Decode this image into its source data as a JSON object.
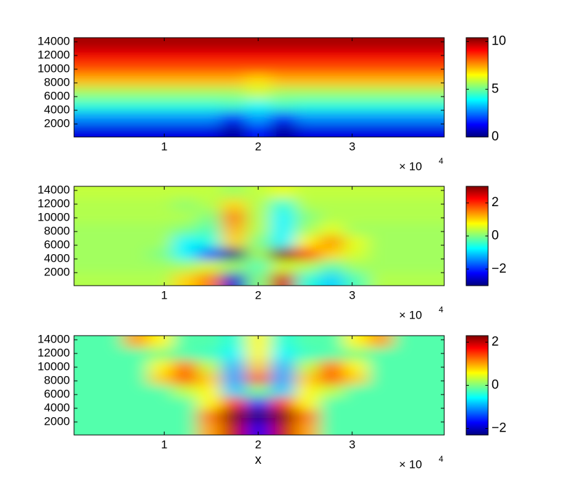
{
  "chart_data": [
    {
      "type": "heatmap",
      "x": [
        1800,
        4400,
        7000,
        9600,
        12200,
        14800,
        17400,
        20000,
        22600,
        25200,
        27800,
        30400,
        33000,
        35600,
        38200
      ],
      "y": [
        13700,
        11900,
        10100,
        8300,
        6500,
        4700,
        2900,
        1100
      ],
      "z": [
        [
          10,
          10,
          10,
          10,
          10,
          10,
          10,
          10,
          10,
          10,
          10,
          10,
          10,
          10,
          10
        ],
        [
          9.2,
          9.2,
          9.2,
          9.2,
          9.2,
          9.2,
          9.2,
          9.2,
          9.2,
          9.2,
          9.2,
          9.2,
          9.2,
          9.2,
          9.2
        ],
        [
          8.3,
          8.3,
          8.3,
          8.3,
          8.3,
          8.3,
          8.3,
          8.3,
          8.3,
          8.3,
          8.3,
          8.3,
          8.3,
          8.3,
          8.3
        ],
        [
          7.2,
          7.2,
          7.2,
          7.2,
          7.2,
          7.2,
          7.2,
          6.8,
          7.2,
          7.2,
          7.2,
          7.2,
          7.2,
          7.2,
          7.2
        ],
        [
          5.5,
          5.5,
          5.5,
          5.5,
          5.5,
          5.5,
          5.5,
          6.0,
          5.5,
          5.5,
          5.5,
          5.5,
          5.5,
          5.5,
          5.5
        ],
        [
          4.3,
          4.3,
          4.3,
          4.3,
          4.3,
          4.3,
          4.5,
          4.0,
          4.5,
          4.3,
          4.3,
          4.3,
          4.3,
          4.3,
          4.3
        ],
        [
          2.8,
          2.8,
          2.8,
          2.8,
          2.8,
          2.8,
          1.5,
          3.0,
          1.5,
          2.8,
          2.8,
          2.8,
          2.8,
          2.8,
          2.8
        ],
        [
          1.0,
          1.0,
          1.0,
          1.0,
          1.0,
          1.0,
          0.3,
          1.5,
          0.3,
          1.0,
          1.0,
          1.0,
          1.0,
          1.0,
          1.0
        ]
      ],
      "xlim": [
        400,
        39800
      ],
      "ylim": [
        100,
        14600
      ],
      "xticks": [
        {
          "value": 10000,
          "label": "1"
        },
        {
          "value": 20000,
          "label": "2"
        },
        {
          "value": 30000,
          "label": "3"
        }
      ],
      "yticks": [
        2000,
        4000,
        6000,
        8000,
        10000,
        12000,
        14000
      ],
      "x_multiplier": "× 10",
      "x_multiplier_exponent": "4",
      "colorbar": {
        "clim": [
          0,
          10.4
        ],
        "ticks": [
          0,
          5,
          10
        ]
      }
    },
    {
      "type": "heatmap",
      "x": [
        1800,
        4400,
        7000,
        9600,
        12200,
        14800,
        17400,
        20000,
        22600,
        25200,
        27800,
        30400,
        33000,
        35600,
        38200
      ],
      "y": [
        13700,
        11900,
        10100,
        8300,
        6500,
        4700,
        2900,
        1100
      ],
      "z": [
        [
          0.4,
          0.4,
          0.4,
          0.4,
          0.4,
          0.4,
          0.2,
          0.4,
          0.6,
          0.4,
          0.4,
          0.4,
          0.4,
          0.4,
          0.4
        ],
        [
          0.3,
          0.3,
          0.3,
          0.3,
          0.1,
          0.3,
          1.0,
          0.3,
          -0.5,
          0.3,
          0.3,
          0.3,
          0.3,
          0.3,
          0.3
        ],
        [
          0.3,
          0.3,
          0.3,
          0.3,
          0.3,
          0.0,
          1.5,
          0.3,
          -0.8,
          0.0,
          0.3,
          0.3,
          0.3,
          0.3,
          0.3
        ],
        [
          0.2,
          0.2,
          0.2,
          0.2,
          0.0,
          -0.3,
          1.2,
          0.3,
          -0.8,
          0.2,
          0.6,
          0.2,
          0.2,
          0.2,
          0.2
        ],
        [
          0.2,
          0.2,
          0.2,
          0.2,
          -0.8,
          -0.6,
          1.0,
          0.0,
          -0.8,
          0.8,
          1.4,
          0.6,
          0.2,
          0.2,
          0.2
        ],
        [
          0.2,
          0.2,
          0.2,
          0.0,
          -0.8,
          -1.8,
          -3.0,
          0.2,
          3.0,
          2.0,
          1.0,
          0.5,
          0.2,
          0.2,
          0.2
        ],
        [
          0.2,
          0.2,
          0.2,
          0.2,
          0.2,
          0.5,
          0.2,
          -0.3,
          0.5,
          0.3,
          -0.2,
          0.2,
          0.2,
          0.2,
          0.2
        ],
        [
          0.3,
          0.3,
          0.3,
          0.3,
          1.0,
          1.5,
          -2.5,
          0.0,
          2.5,
          -0.5,
          -1.0,
          -0.3,
          0.3,
          0.3,
          0.3
        ]
      ],
      "xlim": [
        400,
        39800
      ],
      "ylim": [
        100,
        14600
      ],
      "xticks": [
        {
          "value": 10000,
          "label": "1"
        },
        {
          "value": 20000,
          "label": "2"
        },
        {
          "value": 30000,
          "label": "3"
        }
      ],
      "yticks": [
        2000,
        4000,
        6000,
        8000,
        10000,
        12000,
        14000
      ],
      "x_multiplier": "× 10",
      "x_multiplier_exponent": "4",
      "colorbar": {
        "clim": [
          -3,
          3
        ],
        "ticks": [
          {
            "value": -2,
            "label": "−2"
          },
          0,
          2
        ]
      }
    },
    {
      "type": "heatmap",
      "x": [
        1800,
        4400,
        7000,
        9600,
        12200,
        14800,
        17400,
        20000,
        22600,
        25200,
        27800,
        30400,
        33000,
        35600,
        38200
      ],
      "y": [
        13700,
        11900,
        10100,
        8300,
        6500,
        4700,
        2900,
        1100
      ],
      "z": [
        [
          -0.2,
          -0.2,
          1.0,
          0.6,
          -0.2,
          -0.2,
          -0.4,
          0.6,
          -0.4,
          -0.2,
          -0.2,
          0.6,
          1.0,
          -0.2,
          -0.2
        ],
        [
          -0.2,
          -0.2,
          -0.2,
          0.0,
          -0.2,
          -0.3,
          -0.6,
          0.6,
          -0.6,
          -0.3,
          -0.2,
          0.0,
          -0.2,
          -0.2,
          -0.2
        ],
        [
          -0.2,
          -0.2,
          -0.2,
          0.6,
          1.2,
          0.3,
          -0.9,
          0.8,
          -0.9,
          0.3,
          1.2,
          0.6,
          -0.2,
          -0.2,
          -0.2
        ],
        [
          -0.2,
          -0.2,
          -0.2,
          0.8,
          1.3,
          0.8,
          -1.0,
          1.3,
          -1.0,
          0.8,
          1.3,
          0.8,
          -0.2,
          -0.2,
          -0.2
        ],
        [
          -0.2,
          -0.2,
          -0.2,
          -0.2,
          0.3,
          0.6,
          -0.8,
          0.0,
          -0.8,
          0.6,
          0.3,
          -0.2,
          -0.2,
          -0.2,
          -0.2
        ],
        [
          -0.2,
          -0.2,
          -0.2,
          -0.2,
          -0.2,
          0.6,
          1.5,
          -1.5,
          1.5,
          0.6,
          -0.2,
          -0.2,
          -0.2,
          -0.2,
          -0.2
        ],
        [
          -0.2,
          -0.2,
          -0.2,
          -0.2,
          -0.2,
          1.2,
          2.3,
          -2.3,
          2.3,
          1.2,
          -0.2,
          -0.2,
          -0.2,
          -0.2,
          -0.2
        ],
        [
          -0.2,
          -0.2,
          -0.2,
          -0.2,
          -0.2,
          1.0,
          2.0,
          -1.8,
          2.0,
          1.0,
          -0.2,
          -0.2,
          -0.2,
          -0.2,
          -0.2
        ]
      ],
      "xlim": [
        400,
        39800
      ],
      "ylim": [
        100,
        14600
      ],
      "xticks": [
        {
          "value": 10000,
          "label": "1"
        },
        {
          "value": 20000,
          "label": "2"
        },
        {
          "value": 30000,
          "label": "3"
        }
      ],
      "yticks": [
        2000,
        4000,
        6000,
        8000,
        10000,
        12000,
        14000
      ],
      "xlabel": "x",
      "x_multiplier": "× 10",
      "x_multiplier_exponent": "4",
      "colorbar": {
        "clim": [
          -2.3,
          2.3
        ],
        "ticks": [
          {
            "value": -2,
            "label": "−2"
          },
          0,
          2
        ]
      }
    }
  ]
}
